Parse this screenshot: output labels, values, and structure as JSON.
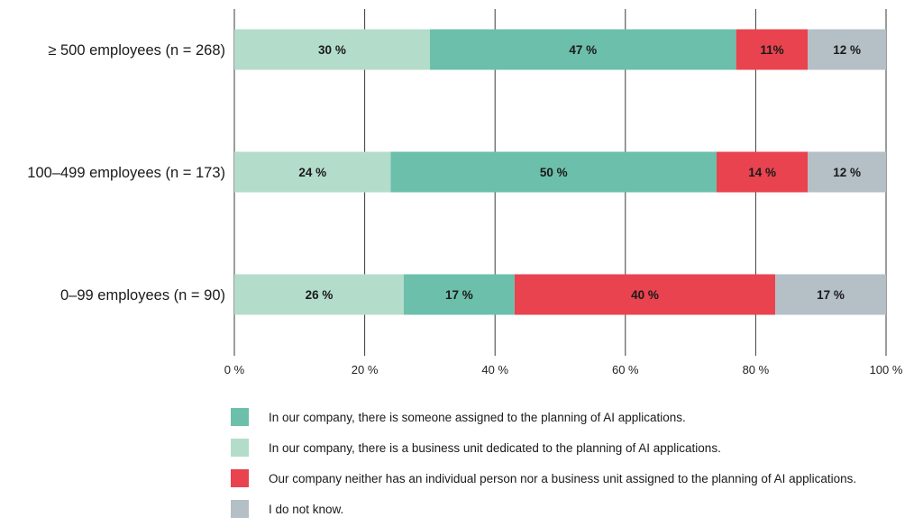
{
  "chart_data": {
    "type": "bar",
    "orientation": "horizontal",
    "stacked": true,
    "categories": [
      "≥ 500 employees (n = 268)",
      "100–499 employees (n = 173)",
      "0–99 employees (n = 90)"
    ],
    "series": [
      {
        "name": "In our company, there is a business unit dedicated to the planning of AI applications.",
        "color": "#b3dccb",
        "values": [
          30,
          24,
          26
        ]
      },
      {
        "name": "In our company, there is someone assigned to the planning of AI applications.",
        "color": "#6cbfaa",
        "values": [
          47,
          50,
          17
        ]
      },
      {
        "name": "Our company neither has an individual person nor a business unit assigned to the planning of AI applications.",
        "color": "#e8434f",
        "values": [
          11,
          14,
          40
        ]
      },
      {
        "name": "I do not know.",
        "color": "#b4bfc6",
        "values": [
          12,
          12,
          17
        ]
      }
    ],
    "value_labels": [
      [
        "30 %",
        "24 %",
        "26 %"
      ],
      [
        "47 %",
        "50 %",
        "17 %"
      ],
      [
        "11%",
        "14 %",
        "40 %"
      ],
      [
        "12 %",
        "12 %",
        "17 %"
      ]
    ],
    "xlim": [
      0,
      100
    ],
    "xticks": [
      0,
      20,
      40,
      60,
      80,
      100
    ],
    "xtick_labels": [
      "0 %",
      "20 %",
      "40 %",
      "60 %",
      "80 %",
      "100 %"
    ],
    "grid": true,
    "legend_position": "bottom"
  },
  "legend": [
    {
      "label": "In our company, there is someone assigned to the planning of AI applications.",
      "color": "#6cbfaa"
    },
    {
      "label": "In our company, there is a business unit dedicated to the planning of AI applications.",
      "color": "#b3dccb"
    },
    {
      "label": "Our company neither has an individual person nor a business unit assigned to the planning of AI applications.",
      "color": "#e8434f"
    },
    {
      "label": "I do not know.",
      "color": "#b4bfc6"
    }
  ]
}
